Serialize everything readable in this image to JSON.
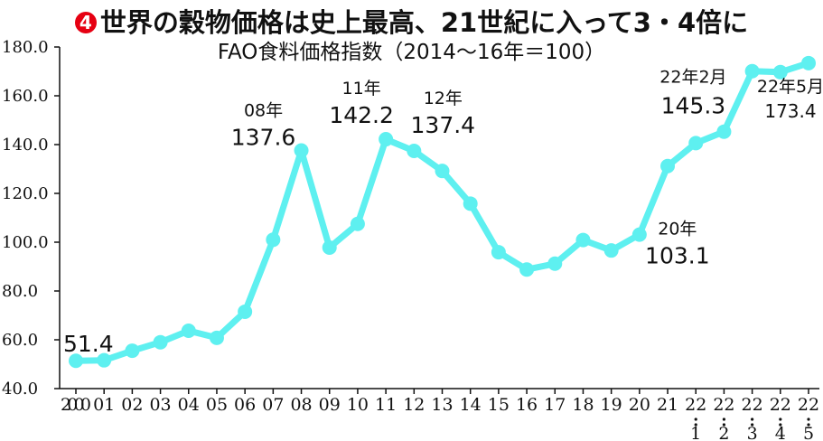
{
  "header": {
    "badge": "4",
    "title": "世界の穀物価格は史上最高、21世紀に入って3・4倍に",
    "subtitle": "FAO食料価格指数（2014〜16年＝100）"
  },
  "colors": {
    "line": "#5ef0f0",
    "axis": "#111111",
    "badge": "#e60012"
  },
  "chart_data": {
    "type": "line",
    "title": "世界の穀物価格は史上最高、21世紀に入って3・4倍に",
    "subtitle": "FAO食料価格指数（2014〜16年＝100）",
    "xlabel": "",
    "ylabel": "",
    "ylim": [
      40,
      180
    ],
    "yticks": [
      "40.0",
      "60.0",
      "80.0",
      "100.0",
      "120.0",
      "140.0",
      "160.0",
      "180.0"
    ],
    "grid": false,
    "x_labels": [
      [
        "2000"
      ],
      [
        "01"
      ],
      [
        "02"
      ],
      [
        "03"
      ],
      [
        "04"
      ],
      [
        "05"
      ],
      [
        "06"
      ],
      [
        "07"
      ],
      [
        "08"
      ],
      [
        "09"
      ],
      [
        "10"
      ],
      [
        "11"
      ],
      [
        "12"
      ],
      [
        "13"
      ],
      [
        "14"
      ],
      [
        "15"
      ],
      [
        "16"
      ],
      [
        "17"
      ],
      [
        "18"
      ],
      [
        "19"
      ],
      [
        "20"
      ],
      [
        "21"
      ],
      [
        "22",
        "1"
      ],
      [
        "22",
        "2"
      ],
      [
        "22",
        "3"
      ],
      [
        "22",
        "4"
      ],
      [
        "22",
        "5"
      ]
    ],
    "series": [
      {
        "values": [
          51.4,
          51.6,
          55.5,
          59.0,
          63.7,
          60.8,
          71.5,
          101.0,
          137.6,
          97.8,
          107.5,
          142.2,
          137.4,
          129.2,
          115.8,
          95.9,
          88.8,
          91.2,
          100.9,
          96.6,
          103.1,
          131.2,
          140.6,
          145.3,
          170.1,
          169.7,
          173.4
        ]
      }
    ],
    "annotations": [
      {
        "index": 0,
        "year": "",
        "value": "51.4"
      },
      {
        "index": 8,
        "year": "08年",
        "value": "137.6"
      },
      {
        "index": 11,
        "year": "11年",
        "value": "142.2"
      },
      {
        "index": 12,
        "year": "12年",
        "value": "137.4"
      },
      {
        "index": 20,
        "year": "20年",
        "value": "103.1"
      },
      {
        "index": 23,
        "year": "22年2月",
        "value": "145.3"
      },
      {
        "index": 26,
        "year": "22年5月",
        "value": "173.4"
      }
    ]
  }
}
